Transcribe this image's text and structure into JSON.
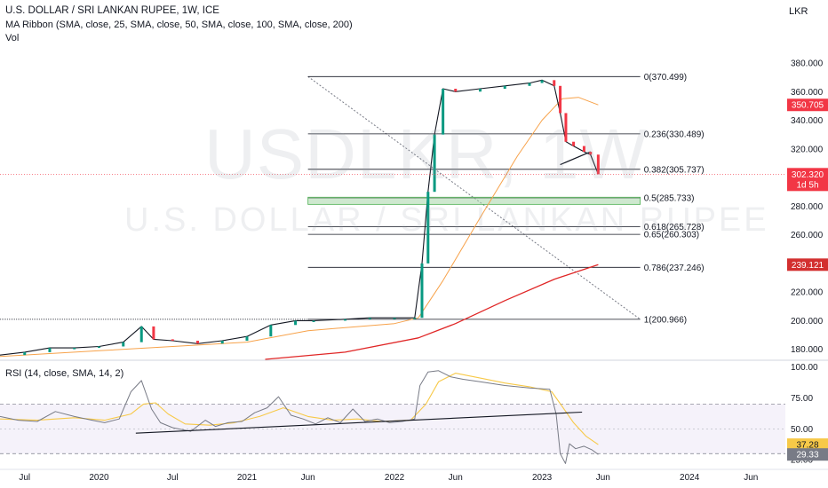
{
  "header": {
    "title": "U.S. DOLLAR / SRI LANKAN RUPEE, 1W, ICE",
    "ma_ribbon": "MA Ribbon (SMA, close, 25, SMA, close, 50, SMA, close, 100, SMA, close, 200)",
    "vol": "Vol",
    "currency": "LKR"
  },
  "watermark": {
    "symbol": "USDLKR, 1W",
    "name": "U.S. DOLLAR / SRI LANKAN RUPEE"
  },
  "colors": {
    "price_axis_bg": "#ffffff",
    "up": "#089981",
    "down": "#f23645",
    "sma25": "#f7a24a",
    "sma_long": "#e02626",
    "rsi_line": "#7e57c2",
    "rsi_ma": "#f7c948",
    "fib_band": "#a5d6a7",
    "current_label": "#f23645",
    "sma_long_label": "#d32f2f",
    "rsi_band": "rgba(126,87,194,0.08)"
  },
  "chart_data": [
    {
      "type": "line",
      "name": "price",
      "y_axis": {
        "ticks": [
          180,
          200,
          220,
          240,
          260,
          280,
          300,
          320,
          340,
          360,
          380
        ],
        "tick_labels": [
          "180.000",
          "200.000",
          "220.000",
          "240.000",
          "260.000",
          "280.000",
          "300.000",
          "320.000",
          "340.000",
          "360.000",
          "380.000"
        ],
        "range": [
          173,
          393
        ]
      },
      "x_axis": {
        "ticks": [
          "2019-07-01",
          "2020-01-01",
          "2020-07-01",
          "2021-01-01",
          "2021-06-01",
          "2022-01-01",
          "2022-06-01",
          "2023-01-01",
          "2023-06-01",
          "2024-01-01",
          "2024-06-01"
        ],
        "tick_labels": [
          "Jul",
          "2020",
          "Jul",
          "2021",
          "Jun",
          "2022",
          "Jun",
          "2023",
          "Jun",
          "2024",
          "Jun"
        ],
        "range": [
          "2019-05-01",
          "2024-08-25"
        ]
      },
      "fibonacci": {
        "levels": [
          {
            "ratio": "0",
            "value": 370.499,
            "label": "0(370.499)"
          },
          {
            "ratio": "0.236",
            "value": 330.489,
            "label": "0.236(330.489)"
          },
          {
            "ratio": "0.382",
            "value": 305.737,
            "label": "0.382(305.737)"
          },
          {
            "ratio": "0.5",
            "value": 285.733,
            "label": "0.5(285.733)"
          },
          {
            "ratio": "0.618",
            "value": 265.728,
            "label": "0.618(265.728)"
          },
          {
            "ratio": "0.65",
            "value": 260.303,
            "label": "0.65(260.303)"
          },
          {
            "ratio": "0.786",
            "value": 237.246,
            "label": "0.786(237.246)"
          },
          {
            "ratio": "1",
            "value": 200.966,
            "label": "1(200.966)"
          }
        ]
      },
      "price_labels": {
        "current": {
          "value": 302.32,
          "text": "302.320",
          "sub": "1d 5h"
        },
        "ma_orange": {
          "value": 350.705,
          "text": "350.705"
        },
        "ma_red": {
          "value": 239.121,
          "text": "239.121"
        }
      },
      "series": [
        {
          "key": "close",
          "points": [
            [
              "2019-05-01",
              176
            ],
            [
              "2019-07-01",
              178
            ],
            [
              "2019-09-01",
              181
            ],
            [
              "2019-11-01",
              181
            ],
            [
              "2020-01-01",
              182
            ],
            [
              "2020-03-01",
              185
            ],
            [
              "2020-04-15",
              196
            ],
            [
              "2020-05-15",
              187
            ],
            [
              "2020-07-01",
              186
            ],
            [
              "2020-09-01",
              184
            ],
            [
              "2020-11-01",
              186
            ],
            [
              "2021-01-01",
              189
            ],
            [
              "2021-03-01",
              197
            ],
            [
              "2021-05-01",
              200
            ],
            [
              "2021-06-15",
              200
            ],
            [
              "2021-09-01",
              201
            ],
            [
              "2021-11-01",
              202
            ],
            [
              "2022-01-01",
              202
            ],
            [
              "2022-02-20",
              202
            ],
            [
              "2022-03-10",
              240
            ],
            [
              "2022-03-25",
              290
            ],
            [
              "2022-04-10",
              330
            ],
            [
              "2022-05-01",
              362
            ],
            [
              "2022-06-01",
              360
            ],
            [
              "2022-08-01",
              362
            ],
            [
              "2022-10-01",
              364
            ],
            [
              "2022-12-01",
              366
            ],
            [
              "2023-01-01",
              368
            ],
            [
              "2023-01-31",
              364
            ],
            [
              "2023-02-15",
              345
            ],
            [
              "2023-03-01",
              325
            ],
            [
              "2023-03-20",
              322
            ],
            [
              "2023-04-15",
              318
            ],
            [
              "2023-05-01",
              316
            ],
            [
              "2023-05-20",
              302.32
            ]
          ]
        },
        {
          "key": "sma_orange",
          "points": [
            [
              "2019-05-01",
              175
            ],
            [
              "2020-01-01",
              179
            ],
            [
              "2020-07-01",
              182
            ],
            [
              "2021-01-01",
              185
            ],
            [
              "2021-06-01",
              193
            ],
            [
              "2022-01-01",
              198
            ],
            [
              "2022-03-01",
              202
            ],
            [
              "2022-05-01",
              228
            ],
            [
              "2022-08-01",
              272
            ],
            [
              "2022-11-01",
              315
            ],
            [
              "2023-01-01",
              340
            ],
            [
              "2023-02-20",
              355
            ],
            [
              "2023-04-01",
              356
            ],
            [
              "2023-05-20",
              350.705
            ]
          ]
        },
        {
          "key": "sma_red",
          "points": [
            [
              "2021-02-15",
              173
            ],
            [
              "2021-09-01",
              178
            ],
            [
              "2022-03-01",
              188
            ],
            [
              "2022-06-01",
              198
            ],
            [
              "2022-10-01",
              214
            ],
            [
              "2023-02-01",
              229
            ],
            [
              "2023-05-20",
              239.121
            ]
          ]
        }
      ]
    },
    {
      "type": "line",
      "name": "RSI",
      "title": "RSI (14, close, SMA, 14, 2)",
      "y_axis": {
        "ticks": [
          25,
          50,
          75,
          100
        ],
        "tick_labels": [
          "25.00",
          "50.00",
          "75.00",
          "100.00"
        ],
        "range": [
          18,
          104
        ],
        "bands": [
          30,
          70
        ]
      },
      "labels": {
        "ma": {
          "value": 37.28,
          "text": "37.28"
        },
        "rsi": {
          "value": 29.33,
          "text": "29.33"
        }
      },
      "series": [
        {
          "key": "rsi",
          "points": [
            [
              "2019-05-01",
              60
            ],
            [
              "2019-06-15",
              57
            ],
            [
              "2019-08-01",
              56
            ],
            [
              "2019-09-15",
              64
            ],
            [
              "2019-11-01",
              60
            ],
            [
              "2019-12-15",
              57
            ],
            [
              "2020-01-15",
              55
            ],
            [
              "2020-02-20",
              58
            ],
            [
              "2020-03-20",
              80
            ],
            [
              "2020-04-15",
              89
            ],
            [
              "2020-05-10",
              66
            ],
            [
              "2020-06-01",
              55
            ],
            [
              "2020-07-01",
              51
            ],
            [
              "2020-08-15",
              48
            ],
            [
              "2020-09-20",
              57
            ],
            [
              "2020-10-15",
              52
            ],
            [
              "2020-11-15",
              55
            ],
            [
              "2020-12-20",
              56
            ],
            [
              "2021-01-20",
              63
            ],
            [
              "2021-02-20",
              67
            ],
            [
              "2021-03-20",
              76
            ],
            [
              "2021-04-20",
              61
            ],
            [
              "2021-05-20",
              58
            ],
            [
              "2021-06-20",
              54
            ],
            [
              "2021-07-20",
              59
            ],
            [
              "2021-08-20",
              55
            ],
            [
              "2021-09-20",
              66
            ],
            [
              "2021-10-20",
              56
            ],
            [
              "2021-11-20",
              58
            ],
            [
              "2021-12-20",
              55
            ],
            [
              "2022-01-20",
              56
            ],
            [
              "2022-02-20",
              58
            ],
            [
              "2022-03-05",
              85
            ],
            [
              "2022-03-25",
              96
            ],
            [
              "2022-04-20",
              97
            ],
            [
              "2022-05-20",
              92
            ],
            [
              "2022-06-20",
              90
            ],
            [
              "2022-08-01",
              88
            ],
            [
              "2022-10-01",
              85
            ],
            [
              "2022-12-01",
              83
            ],
            [
              "2023-01-20",
              82
            ],
            [
              "2023-02-05",
              62
            ],
            [
              "2023-02-15",
              30
            ],
            [
              "2023-02-28",
              22
            ],
            [
              "2023-03-10",
              38
            ],
            [
              "2023-03-25",
              34
            ],
            [
              "2023-04-15",
              36
            ],
            [
              "2023-05-05",
              33
            ],
            [
              "2023-05-20",
              29.33
            ]
          ]
        },
        {
          "key": "rsi_ma",
          "points": [
            [
              "2019-05-01",
              58
            ],
            [
              "2019-08-01",
              57
            ],
            [
              "2019-11-01",
              59
            ],
            [
              "2020-01-15",
              57
            ],
            [
              "2020-03-20",
              62
            ],
            [
              "2020-04-20",
              70
            ],
            [
              "2020-05-20",
              71
            ],
            [
              "2020-06-20",
              62
            ],
            [
              "2020-08-01",
              54
            ],
            [
              "2020-10-01",
              53
            ],
            [
              "2020-12-01",
              55
            ],
            [
              "2021-02-01",
              60
            ],
            [
              "2021-04-01",
              67
            ],
            [
              "2021-06-01",
              60
            ],
            [
              "2021-08-01",
              57
            ],
            [
              "2021-10-01",
              58
            ],
            [
              "2021-12-01",
              56
            ],
            [
              "2022-02-10",
              57
            ],
            [
              "2022-03-20",
              70
            ],
            [
              "2022-04-20",
              88
            ],
            [
              "2022-06-01",
              95
            ],
            [
              "2022-08-01",
              91
            ],
            [
              "2022-10-01",
              87
            ],
            [
              "2022-12-01",
              84
            ],
            [
              "2023-01-25",
              80
            ],
            [
              "2023-02-20",
              68
            ],
            [
              "2023-03-20",
              55
            ],
            [
              "2023-04-20",
              44
            ],
            [
              "2023-05-20",
              37.28
            ]
          ]
        }
      ],
      "trendlines": [
        {
          "from": [
            "2020-04-01",
            46.5
          ],
          "to": [
            "2023-04-10",
            63.5
          ]
        }
      ]
    }
  ]
}
